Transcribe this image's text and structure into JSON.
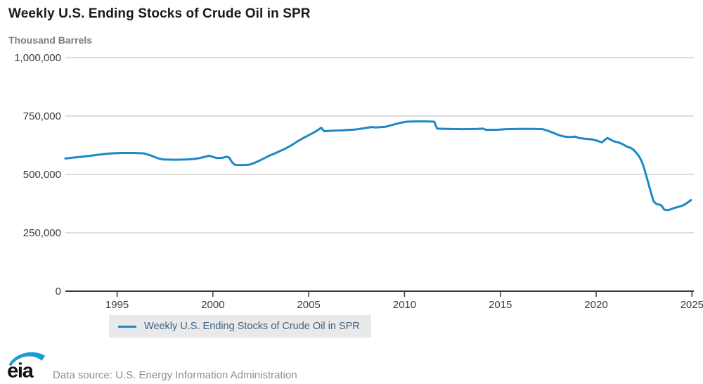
{
  "page": {
    "title": "Weekly U.S. Ending Stocks of Crude Oil in SPR",
    "units_label": "Thousand Barrels",
    "data_source": "Data source: U.S. Energy Information Administration",
    "logo_text": "eia"
  },
  "legend": {
    "label": "Weekly U.S. Ending Stocks of Crude Oil in SPR"
  },
  "colors": {
    "series_line": "#1d87c8",
    "grid_line": "#dedede",
    "axis_line": "#3a3a3a",
    "tick_text": "#3c3c3c",
    "title_text": "#1a1a1a",
    "units_text": "#7c7c7c",
    "legend_bg": "#e9e9e9",
    "legend_text": "#3e6283",
    "source_text": "#8e8e8e",
    "logo_text": "#111111",
    "logo_swoosh": "#1b9ad6"
  },
  "chart_data": {
    "type": "line",
    "title": "Weekly U.S. Ending Stocks of Crude Oil in SPR",
    "xlabel": "",
    "ylabel": "Thousand Barrels",
    "grid": true,
    "legend_position": "bottom",
    "x_range": [
      1992.3,
      2025.1
    ],
    "y_range": [
      0,
      1000000
    ],
    "x_ticks": [
      {
        "value": 1995,
        "label": "1995"
      },
      {
        "value": 2000,
        "label": "2000"
      },
      {
        "value": 2005,
        "label": "2005"
      },
      {
        "value": 2010,
        "label": "2010"
      },
      {
        "value": 2015,
        "label": "2015"
      },
      {
        "value": 2020,
        "label": "2020"
      },
      {
        "value": 2025,
        "label": "2025"
      }
    ],
    "y_ticks": [
      {
        "value": 0,
        "label": "0"
      },
      {
        "value": 250000,
        "label": "250,000"
      },
      {
        "value": 500000,
        "label": "500,000"
      },
      {
        "value": 750000,
        "label": "750,000"
      },
      {
        "value": 1000000,
        "label": "1,000,000"
      }
    ],
    "series": [
      {
        "name": "Weekly U.S. Ending Stocks of Crude Oil in SPR",
        "color": "#1d87c8",
        "points": [
          [
            1992.3,
            568000
          ],
          [
            1992.7,
            572000
          ],
          [
            1993.2,
            576000
          ],
          [
            1993.7,
            581000
          ],
          [
            1994.2,
            586000
          ],
          [
            1994.7,
            590000
          ],
          [
            1995.2,
            592000
          ],
          [
            1995.9,
            592000
          ],
          [
            1996.4,
            590000
          ],
          [
            1996.8,
            580000
          ],
          [
            1997.1,
            570000
          ],
          [
            1997.4,
            564000
          ],
          [
            1998.0,
            563000
          ],
          [
            1998.6,
            564000
          ],
          [
            1999.0,
            566000
          ],
          [
            1999.3,
            570000
          ],
          [
            1999.6,
            576000
          ],
          [
            1999.8,
            580000
          ],
          [
            2000.0,
            575000
          ],
          [
            2000.2,
            570000
          ],
          [
            2000.5,
            571000
          ],
          [
            2000.7,
            576000
          ],
          [
            2000.85,
            572000
          ],
          [
            2001.0,
            552000
          ],
          [
            2001.15,
            541000
          ],
          [
            2001.5,
            540000
          ],
          [
            2001.9,
            542000
          ],
          [
            2002.1,
            547000
          ],
          [
            2002.4,
            558000
          ],
          [
            2002.7,
            570000
          ],
          [
            2002.9,
            579000
          ],
          [
            2003.2,
            589000
          ],
          [
            2003.5,
            600000
          ],
          [
            2003.8,
            611000
          ],
          [
            2004.1,
            625000
          ],
          [
            2004.4,
            641000
          ],
          [
            2004.7,
            655000
          ],
          [
            2005.0,
            668000
          ],
          [
            2005.3,
            681000
          ],
          [
            2005.55,
            694000
          ],
          [
            2005.65,
            700000
          ],
          [
            2005.8,
            685000
          ],
          [
            2006.2,
            687000
          ],
          [
            2006.8,
            689000
          ],
          [
            2007.4,
            692000
          ],
          [
            2008.0,
            699000
          ],
          [
            2008.3,
            703000
          ],
          [
            2008.5,
            701000
          ],
          [
            2009.0,
            704000
          ],
          [
            2009.4,
            713000
          ],
          [
            2009.8,
            721000
          ],
          [
            2010.1,
            726000
          ],
          [
            2010.6,
            727000
          ],
          [
            2011.1,
            727000
          ],
          [
            2011.55,
            726000
          ],
          [
            2011.7,
            696000
          ],
          [
            2012.2,
            695000
          ],
          [
            2013.0,
            694000
          ],
          [
            2013.8,
            695000
          ],
          [
            2014.1,
            696000
          ],
          [
            2014.25,
            691000
          ],
          [
            2014.8,
            691000
          ],
          [
            2015.3,
            694000
          ],
          [
            2016.0,
            695000
          ],
          [
            2016.8,
            695000
          ],
          [
            2017.2,
            694000
          ],
          [
            2017.5,
            686000
          ],
          [
            2017.8,
            677000
          ],
          [
            2018.1,
            667000
          ],
          [
            2018.4,
            661000
          ],
          [
            2018.7,
            660000
          ],
          [
            2018.9,
            662000
          ],
          [
            2019.1,
            656000
          ],
          [
            2019.4,
            653000
          ],
          [
            2019.8,
            650000
          ],
          [
            2020.1,
            643000
          ],
          [
            2020.3,
            637000
          ],
          [
            2020.5,
            651000
          ],
          [
            2020.6,
            656000
          ],
          [
            2020.75,
            649000
          ],
          [
            2020.95,
            641000
          ],
          [
            2021.2,
            636000
          ],
          [
            2021.4,
            629000
          ],
          [
            2021.6,
            619000
          ],
          [
            2021.8,
            614000
          ],
          [
            2021.95,
            606000
          ],
          [
            2022.1,
            592000
          ],
          [
            2022.25,
            577000
          ],
          [
            2022.4,
            552000
          ],
          [
            2022.55,
            514000
          ],
          [
            2022.7,
            470000
          ],
          [
            2022.85,
            425000
          ],
          [
            2023.0,
            384000
          ],
          [
            2023.15,
            373000
          ],
          [
            2023.35,
            370000
          ],
          [
            2023.45,
            363000
          ],
          [
            2023.55,
            349000
          ],
          [
            2023.75,
            347000
          ],
          [
            2023.9,
            351000
          ],
          [
            2024.1,
            357000
          ],
          [
            2024.3,
            361000
          ],
          [
            2024.5,
            366000
          ],
          [
            2024.7,
            375000
          ],
          [
            2024.85,
            384000
          ],
          [
            2024.95,
            390000
          ]
        ]
      }
    ]
  }
}
